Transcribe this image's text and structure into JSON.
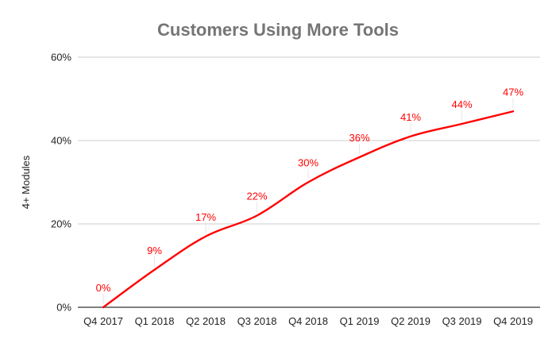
{
  "chart_data": {
    "type": "line",
    "title": "Customers Using More Tools",
    "xlabel": "",
    "ylabel": "4+ Modules",
    "categories": [
      "Q4 2017",
      "Q1 2018",
      "Q2 2018",
      "Q3 2018",
      "Q4 2018",
      "Q1 2019",
      "Q2 2019",
      "Q3 2019",
      "Q4 2019"
    ],
    "series": [
      {
        "values": [
          0,
          9,
          17,
          22,
          30,
          36,
          41,
          44,
          47
        ],
        "data_labels": [
          "0%",
          "9%",
          "17%",
          "22%",
          "30%",
          "36%",
          "41%",
          "44%",
          "47%"
        ]
      }
    ],
    "ylim": [
      0,
      60
    ],
    "yticks": [
      0,
      20,
      40,
      60
    ],
    "ytick_labels": [
      "0%",
      "20%",
      "40%",
      "60%"
    ],
    "grid": true,
    "legend": "none",
    "colors": {
      "line": "#ff0000",
      "data_label": "#ff0000",
      "title": "#757575",
      "grid": "#cccccc",
      "axis": "#333333"
    }
  }
}
